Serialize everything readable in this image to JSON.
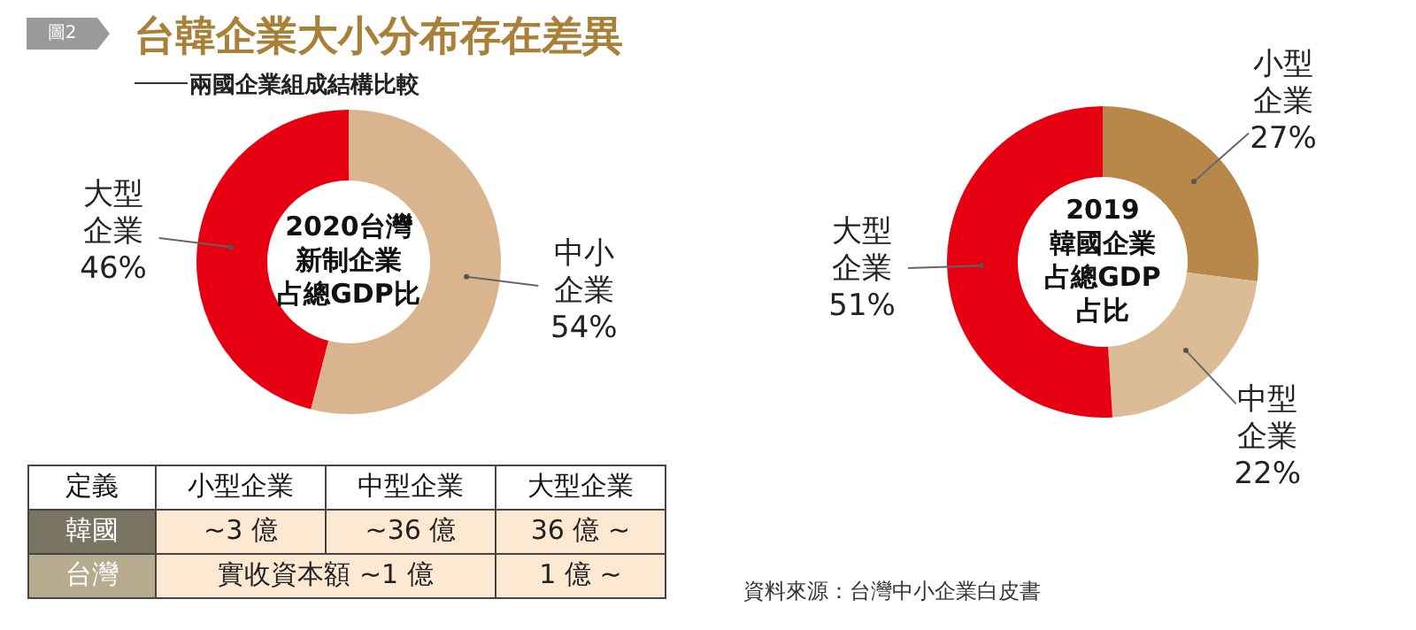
{
  "chart_data": [
    {
      "type": "donut",
      "title": "台韓企業大小分布存在差異",
      "subtitle": "兩國企業組成結構比較",
      "annotations": [
        "圖2",
        "2020台灣",
        "新制企業",
        "占總GDP比"
      ],
      "categories": [
        "中小企業",
        "大型企業"
      ],
      "values": [
        54,
        46
      ],
      "value_labels": [
        "54%",
        "46%"
      ],
      "colors": [
        "#d9b48f",
        "#e60012"
      ]
    },
    {
      "type": "donut",
      "annotations": [
        "2019",
        "韓國企業",
        "占總GDP",
        "占比"
      ],
      "categories": [
        "小型企業",
        "中型企業",
        "大型企業"
      ],
      "values": [
        27,
        22,
        51
      ],
      "value_labels": [
        "27%",
        "22%",
        "51%"
      ],
      "colors": [
        "#b8884a",
        "#dcbc96",
        "#e60012"
      ]
    },
    {
      "type": "other",
      "categories": [
        "定義",
        "小型企業",
        "中型企業",
        "大型企業"
      ],
      "y_categories": [
        "韓國",
        "台灣"
      ],
      "cell_labels": [
        [
          "~3 億",
          "~36 億",
          "36 億 ~"
        ],
        [
          "實收資本額 ~1 億",
          null,
          "1 億 ~"
        ]
      ],
      "annotations": [
        "資料來源：台灣中小企業白皮書"
      ]
    }
  ]
}
